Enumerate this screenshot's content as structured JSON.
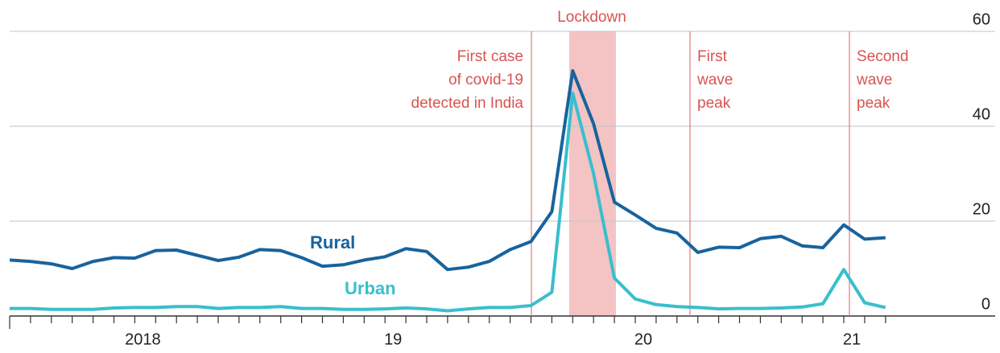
{
  "chart_data": {
    "type": "line",
    "categories": [
      null,
      null,
      null,
      null,
      null,
      null,
      "2018",
      null,
      null,
      null,
      null,
      null,
      null,
      null,
      null,
      null,
      null,
      null,
      "19",
      null,
      null,
      null,
      null,
      null,
      null,
      null,
      null,
      null,
      null,
      null,
      "20",
      null,
      null,
      null,
      null,
      null,
      null,
      null,
      null,
      null,
      "21",
      null,
      null
    ],
    "series": [
      {
        "name": "Rural",
        "color": "#17639e",
        "values": [
          11.8,
          11.5,
          11,
          10,
          11.5,
          12.3,
          12.2,
          13.8,
          13.9,
          12.8,
          11.7,
          12.4,
          14,
          13.8,
          12.3,
          10.5,
          10.8,
          11.8,
          12.5,
          14.2,
          13.6,
          9.8,
          10.3,
          11.5,
          14,
          15.7,
          22,
          51.7,
          40.5,
          24,
          21.3,
          18.5,
          17.5,
          13.4,
          14.5,
          14.4,
          16.3,
          16.8,
          14.8,
          14.4,
          19.2,
          16.2,
          16.5
        ]
      },
      {
        "name": "Urban",
        "color": "#38bfcd",
        "values": [
          1.6,
          1.6,
          1.4,
          1.4,
          1.4,
          1.7,
          1.8,
          1.8,
          2,
          2,
          1.6,
          1.8,
          1.8,
          2,
          1.6,
          1.6,
          1.4,
          1.4,
          1.5,
          1.7,
          1.5,
          1.1,
          1.5,
          1.8,
          1.8,
          2.2,
          5,
          47,
          30,
          8,
          3.6,
          2.4,
          2,
          1.8,
          1.5,
          1.6,
          1.6,
          1.7,
          1.9,
          2.6,
          9.8,
          2.8,
          1.8
        ]
      }
    ],
    "ylim": [
      0,
      60
    ],
    "yticks": [
      0,
      20,
      40,
      60
    ],
    "grid": true,
    "annotations": {
      "lockdown": "Lockdown",
      "first_case": [
        "First case",
        "of covid-19",
        "detected in India"
      ],
      "first_wave": [
        "First",
        "wave",
        "peak"
      ],
      "second_wave": [
        "Second",
        "wave",
        "peak"
      ]
    }
  }
}
